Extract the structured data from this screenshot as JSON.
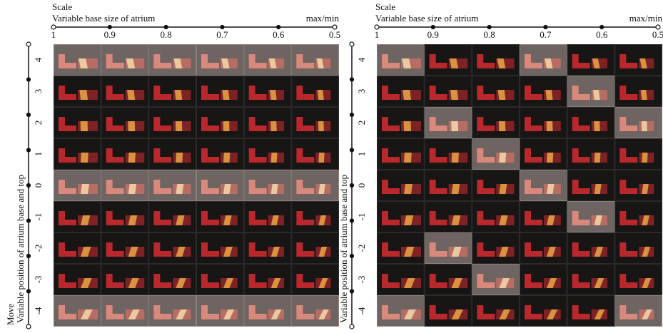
{
  "panels": [
    {
      "scale_title": "Scale",
      "scale_label": "Variable base size of atrium",
      "scale_end": "max/min",
      "scale_ticks": [
        "1",
        "0.9",
        "0.8",
        "0.7",
        "0.6",
        "0.5"
      ],
      "move_title": "Move",
      "move_label": "Variable position of atrium base and top",
      "move_ticks": [
        "4",
        "3",
        "2",
        "1",
        "0",
        "-1",
        "-2",
        "-3",
        "-4"
      ],
      "highlighted_cells": [
        [
          0,
          0
        ],
        [
          0,
          1
        ],
        [
          0,
          2
        ],
        [
          0,
          3
        ],
        [
          0,
          4
        ],
        [
          0,
          5
        ],
        [
          4,
          0
        ],
        [
          4,
          1
        ],
        [
          4,
          2
        ],
        [
          4,
          3
        ],
        [
          4,
          4
        ],
        [
          4,
          5
        ],
        [
          8,
          0
        ],
        [
          8,
          1
        ],
        [
          8,
          2
        ],
        [
          8,
          3
        ],
        [
          8,
          4
        ],
        [
          8,
          5
        ]
      ]
    },
    {
      "scale_title": "Scale",
      "scale_label": "Variable base size of atrium",
      "scale_end": "max/min",
      "scale_ticks": [
        "1",
        "0.9",
        "0.8",
        "0.7",
        "0.6",
        "0.5"
      ],
      "move_label": "Variable position of atrium base and top",
      "move_ticks": [
        "4",
        "3",
        "2",
        "1",
        "0",
        "-1",
        "-2",
        "-3",
        "-4"
      ],
      "highlighted_cells": [
        [
          0,
          0
        ],
        [
          0,
          3
        ],
        [
          1,
          4
        ],
        [
          2,
          1
        ],
        [
          2,
          5
        ],
        [
          3,
          2
        ],
        [
          4,
          3
        ],
        [
          5,
          4
        ],
        [
          6,
          1
        ],
        [
          7,
          2
        ],
        [
          8,
          0
        ],
        [
          8,
          5
        ]
      ]
    }
  ]
}
